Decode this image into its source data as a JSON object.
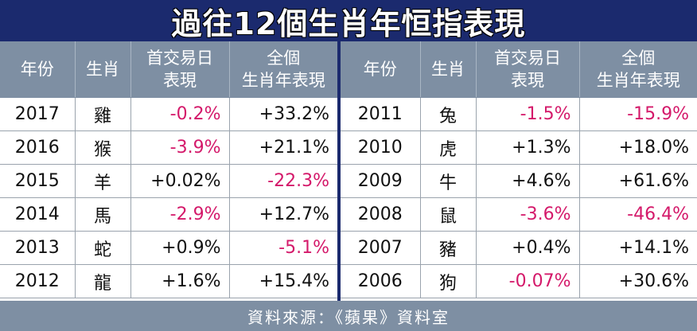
{
  "title": "過往12個生肖年恒指表現",
  "headers": {
    "year": "年份",
    "zodiac": "生肖",
    "first_day_1": "首交易日",
    "first_day_2": "表現",
    "full_year_1": "全個",
    "full_year_2": "生肖年表現"
  },
  "left_rows": [
    {
      "year": "2017",
      "zodiac": "雞",
      "first_day": "-0.2%",
      "full_year": "+33.2%"
    },
    {
      "year": "2016",
      "zodiac": "猴",
      "first_day": "-3.9%",
      "full_year": "+21.1%"
    },
    {
      "year": "2015",
      "zodiac": "羊",
      "first_day": "+0.02%",
      "full_year": "-22.3%"
    },
    {
      "year": "2014",
      "zodiac": "馬",
      "first_day": "-2.9%",
      "full_year": "+12.7%"
    },
    {
      "year": "2013",
      "zodiac": "蛇",
      "first_day": "+0.9%",
      "full_year": "-5.1%"
    },
    {
      "year": "2012",
      "zodiac": "龍",
      "first_day": "+1.6%",
      "full_year": "+15.4%"
    }
  ],
  "right_rows": [
    {
      "year": "2011",
      "zodiac": "兔",
      "first_day": "-1.5%",
      "full_year": "-15.9%"
    },
    {
      "year": "2010",
      "zodiac": "虎",
      "first_day": "+1.3%",
      "full_year": "+18.0%"
    },
    {
      "year": "2009",
      "zodiac": "牛",
      "first_day": "+4.6%",
      "full_year": "+61.6%"
    },
    {
      "year": "2008",
      "zodiac": "鼠",
      "first_day": "-3.6%",
      "full_year": "-46.4%"
    },
    {
      "year": "2007",
      "zodiac": "豬",
      "first_day": "+0.4%",
      "full_year": "+14.1%"
    },
    {
      "year": "2006",
      "zodiac": "狗",
      "first_day": "-0.07%",
      "full_year": "+30.6%"
    }
  ],
  "footer": "資料來源：《蘋果》資料室",
  "colors": {
    "title_bg": "#1b2a6e",
    "header_bg": "#7e8fa3",
    "negative": "#d4196a"
  }
}
